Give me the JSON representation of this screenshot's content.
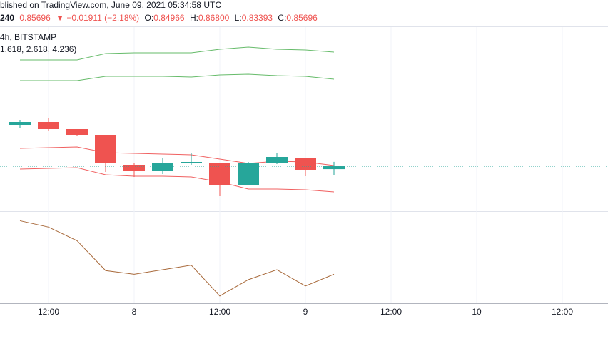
{
  "header": {
    "published": "blished on TradingView.com, June 09, 2021 05:34:58 UTC",
    "interval": "240",
    "last": "0.85696",
    "change": "▼ −0.01911 (−2.18%)",
    "ohlc": [
      {
        "label": "O:",
        "value": "0.84966"
      },
      {
        "label": "H:",
        "value": "0.86800"
      },
      {
        "label": "L:",
        "value": "0.83393"
      },
      {
        "label": "C:",
        "value": "0.85696"
      }
    ],
    "symbol": "4h, BITSTAMP",
    "indicator": "1.618, 2.618, 4.236)"
  },
  "chart_data": [
    {
      "type": "candlestick",
      "categories": [
        null,
        "12:00",
        null,
        null,
        "8",
        null,
        null,
        "12:00",
        null,
        null,
        "9",
        null,
        null,
        "12:00",
        null,
        null,
        "10",
        null,
        null,
        "12:00"
      ],
      "open": [
        0.9614,
        0.9686,
        0.9506,
        0.9362,
        0.8606,
        0.8444,
        0.8642,
        0.866,
        0.8084,
        0.866,
        0.8768,
        0.84966,
        null,
        null,
        null,
        null,
        null,
        null,
        null,
        null
      ],
      "high": [
        0.974,
        0.9776,
        0.9506,
        0.9362,
        0.866,
        0.8768,
        0.8912,
        0.866,
        0.8678,
        0.8912,
        0.8786,
        0.868,
        null,
        null,
        null,
        null,
        null,
        null,
        null,
        null
      ],
      "low": [
        0.9542,
        0.947,
        0.9344,
        0.8426,
        0.83,
        0.8372,
        0.8606,
        0.7814,
        0.8084,
        0.8624,
        0.8318,
        0.83393,
        null,
        null,
        null,
        null,
        null,
        null,
        null,
        null
      ],
      "close": [
        0.9686,
        0.9506,
        0.9362,
        0.866,
        0.8462,
        0.866,
        0.8678,
        0.8084,
        0.866,
        0.8804,
        0.848,
        0.85696,
        null,
        null,
        null,
        null,
        null,
        null,
        null,
        null
      ],
      "up_color": "#26a69a",
      "down_color": "#ef5350",
      "series": [
        {
          "color": "#66bb6a",
          "values": [
            1.1252,
            1.1252,
            1.1252,
            1.1414,
            1.1432,
            1.1432,
            1.1432,
            1.1522,
            1.1576,
            1.1522,
            1.1504,
            1.145,
            null,
            null,
            null,
            null,
            null,
            null,
            null,
            null
          ]
        },
        {
          "color": "#66bb6a",
          "values": [
            1.073,
            1.073,
            1.073,
            1.0838,
            1.0838,
            1.0838,
            1.082,
            1.0874,
            1.0892,
            1.0856,
            1.0838,
            1.0766,
            null,
            null,
            null,
            null,
            null,
            null,
            null,
            null
          ]
        },
        {
          "color": "#f06060",
          "values": [
            0.902,
            0.9038,
            0.9056,
            0.8912,
            0.8894,
            0.8876,
            0.8858,
            0.875,
            0.8642,
            0.8696,
            0.8678,
            0.8588,
            null,
            null,
            null,
            null,
            null,
            null,
            null,
            null
          ]
        },
        {
          "color": "#f06060",
          "values": [
            0.8498,
            0.8516,
            0.8534,
            0.8354,
            0.8318,
            0.8318,
            0.83,
            0.8174,
            0.7994,
            0.7994,
            0.7976,
            0.7922,
            null,
            null,
            null,
            null,
            null,
            null,
            null,
            null
          ]
        }
      ],
      "ylim": [
        0.7454,
        1.208
      ]
    },
    {
      "type": "line",
      "series": [
        {
          "color": "#a8693a",
          "values": [
            91,
            84,
            69,
            36,
            32,
            37,
            42,
            8,
            26,
            37,
            19,
            32,
            null,
            null,
            null,
            null,
            null,
            null,
            null,
            null
          ]
        }
      ],
      "ylim": [
        0,
        100
      ]
    }
  ]
}
